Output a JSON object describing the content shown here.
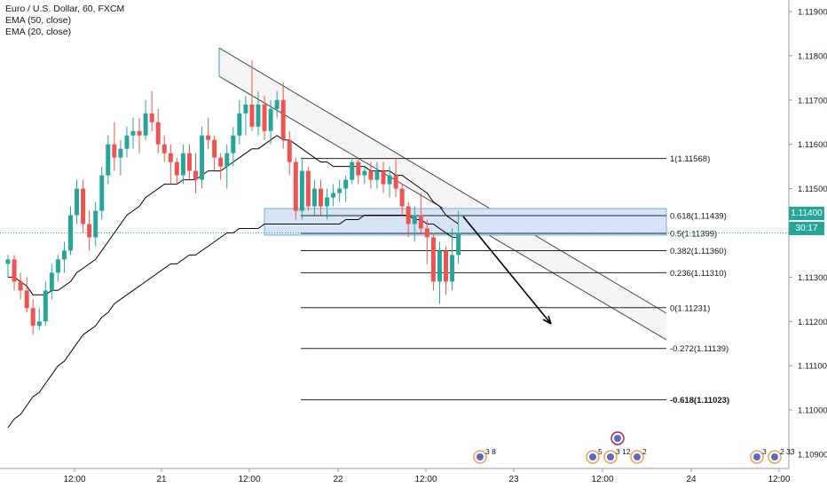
{
  "legend": {
    "title": "Euro / U.S. Dollar, 60, FXCM",
    "ema50": "EMA (50, close)",
    "ema20": "EMA (20, close)"
  },
  "price_label": {
    "value": "1.11400",
    "countdown": "30:17"
  },
  "colors": {
    "up": "#26a69a",
    "down": "#ef5350",
    "ema": "#000000",
    "fib_zone": "#d6e4f7",
    "channel": "#eeeeee",
    "price_line": "#26a69a"
  },
  "events": [
    "3",
    "8",
    "5",
    "3",
    "12",
    "2",
    "3",
    "2",
    "33"
  ],
  "chart_data": {
    "type": "candlestick",
    "y_ticks": [
      "1.11900",
      "1.11800",
      "1.11700",
      "1.11600",
      "1.11500",
      "1.11300",
      "1.11200",
      "1.11100",
      "1.11000",
      "1.10900"
    ],
    "x_ticks": [
      "12:00",
      "21",
      "12:00",
      "22",
      "12:00",
      "23",
      "12:00",
      "24",
      "12:00"
    ],
    "ylim": [
      1.10828,
      1.1192
    ],
    "candles": [
      {
        "o": 1.1133,
        "h": 1.1135,
        "l": 1.113,
        "c": 1.1134
      },
      {
        "o": 1.1134,
        "h": 1.1135,
        "l": 1.1127,
        "c": 1.1129
      },
      {
        "o": 1.1129,
        "h": 1.1131,
        "l": 1.1125,
        "c": 1.1127
      },
      {
        "o": 1.1127,
        "h": 1.113,
        "l": 1.1122,
        "c": 1.1123
      },
      {
        "o": 1.1123,
        "h": 1.1125,
        "l": 1.1117,
        "c": 1.1119
      },
      {
        "o": 1.1119,
        "h": 1.1123,
        "l": 1.1118,
        "c": 1.112
      },
      {
        "o": 1.112,
        "h": 1.1129,
        "l": 1.1119,
        "c": 1.1127
      },
      {
        "o": 1.1127,
        "h": 1.1133,
        "l": 1.1125,
        "c": 1.1131
      },
      {
        "o": 1.1131,
        "h": 1.1135,
        "l": 1.1129,
        "c": 1.1134
      },
      {
        "o": 1.1134,
        "h": 1.1138,
        "l": 1.1131,
        "c": 1.1136
      },
      {
        "o": 1.1136,
        "h": 1.1146,
        "l": 1.1135,
        "c": 1.1144
      },
      {
        "o": 1.1144,
        "h": 1.1152,
        "l": 1.1142,
        "c": 1.115
      },
      {
        "o": 1.115,
        "h": 1.1152,
        "l": 1.114,
        "c": 1.1142
      },
      {
        "o": 1.1142,
        "h": 1.1145,
        "l": 1.1136,
        "c": 1.1139
      },
      {
        "o": 1.1139,
        "h": 1.1147,
        "l": 1.1137,
        "c": 1.1145
      },
      {
        "o": 1.1145,
        "h": 1.1155,
        "l": 1.1143,
        "c": 1.1153
      },
      {
        "o": 1.1153,
        "h": 1.1162,
        "l": 1.1151,
        "c": 1.116
      },
      {
        "o": 1.116,
        "h": 1.1165,
        "l": 1.1154,
        "c": 1.1157
      },
      {
        "o": 1.1157,
        "h": 1.1161,
        "l": 1.1153,
        "c": 1.1159
      },
      {
        "o": 1.1159,
        "h": 1.1164,
        "l": 1.1157,
        "c": 1.1162
      },
      {
        "o": 1.1162,
        "h": 1.1166,
        "l": 1.1159,
        "c": 1.1163
      },
      {
        "o": 1.1163,
        "h": 1.1166,
        "l": 1.1158,
        "c": 1.1162
      },
      {
        "o": 1.1162,
        "h": 1.117,
        "l": 1.1161,
        "c": 1.1167
      },
      {
        "o": 1.1167,
        "h": 1.1172,
        "l": 1.1163,
        "c": 1.1165
      },
      {
        "o": 1.1165,
        "h": 1.1168,
        "l": 1.1158,
        "c": 1.116
      },
      {
        "o": 1.116,
        "h": 1.1162,
        "l": 1.1156,
        "c": 1.1158
      },
      {
        "o": 1.1158,
        "h": 1.116,
        "l": 1.1151,
        "c": 1.1156
      },
      {
        "o": 1.1156,
        "h": 1.1157,
        "l": 1.1151,
        "c": 1.1153
      },
      {
        "o": 1.1153,
        "h": 1.116,
        "l": 1.1151,
        "c": 1.1158
      },
      {
        "o": 1.1158,
        "h": 1.116,
        "l": 1.1152,
        "c": 1.1154
      },
      {
        "o": 1.1154,
        "h": 1.1158,
        "l": 1.1149,
        "c": 1.1152
      },
      {
        "o": 1.1152,
        "h": 1.1164,
        "l": 1.115,
        "c": 1.1162
      },
      {
        "o": 1.1162,
        "h": 1.1166,
        "l": 1.1159,
        "c": 1.1161
      },
      {
        "o": 1.1161,
        "h": 1.1162,
        "l": 1.1154,
        "c": 1.1157
      },
      {
        "o": 1.1157,
        "h": 1.1158,
        "l": 1.1152,
        "c": 1.1155
      },
      {
        "o": 1.1155,
        "h": 1.116,
        "l": 1.115,
        "c": 1.1158
      },
      {
        "o": 1.1158,
        "h": 1.1164,
        "l": 1.1155,
        "c": 1.1162
      },
      {
        "o": 1.1162,
        "h": 1.117,
        "l": 1.116,
        "c": 1.1167
      },
      {
        "o": 1.1167,
        "h": 1.1171,
        "l": 1.1162,
        "c": 1.1169
      },
      {
        "o": 1.1169,
        "h": 1.1179,
        "l": 1.1163,
        "c": 1.1164
      },
      {
        "o": 1.1164,
        "h": 1.1172,
        "l": 1.1162,
        "c": 1.1169
      },
      {
        "o": 1.1169,
        "h": 1.1171,
        "l": 1.1161,
        "c": 1.1163
      },
      {
        "o": 1.1163,
        "h": 1.117,
        "l": 1.116,
        "c": 1.1168
      },
      {
        "o": 1.1168,
        "h": 1.1172,
        "l": 1.1166,
        "c": 1.117
      },
      {
        "o": 1.117,
        "h": 1.1174,
        "l": 1.1159,
        "c": 1.1161
      },
      {
        "o": 1.1161,
        "h": 1.1163,
        "l": 1.1153,
        "c": 1.1156
      },
      {
        "o": 1.1156,
        "h": 1.1157,
        "l": 1.1143,
        "c": 1.1145
      },
      {
        "o": 1.1145,
        "h": 1.1157,
        "l": 1.1143,
        "c": 1.1154
      },
      {
        "o": 1.1154,
        "h": 1.1155,
        "l": 1.1145,
        "c": 1.1146
      },
      {
        "o": 1.1146,
        "h": 1.1152,
        "l": 1.1144,
        "c": 1.115
      },
      {
        "o": 1.115,
        "h": 1.1152,
        "l": 1.1144,
        "c": 1.1146
      },
      {
        "o": 1.1146,
        "h": 1.115,
        "l": 1.1143,
        "c": 1.1148
      },
      {
        "o": 1.1148,
        "h": 1.1151,
        "l": 1.1146,
        "c": 1.1149
      },
      {
        "o": 1.1149,
        "h": 1.1152,
        "l": 1.1147,
        "c": 1.115
      },
      {
        "o": 1.115,
        "h": 1.1153,
        "l": 1.1147,
        "c": 1.1152
      },
      {
        "o": 1.1152,
        "h": 1.1157,
        "l": 1.1151,
        "c": 1.1156
      },
      {
        "o": 1.1156,
        "h": 1.1157,
        "l": 1.1151,
        "c": 1.1153
      },
      {
        "o": 1.1153,
        "h": 1.1155,
        "l": 1.1151,
        "c": 1.1154
      },
      {
        "o": 1.1154,
        "h": 1.1156,
        "l": 1.115,
        "c": 1.1152
      },
      {
        "o": 1.1152,
        "h": 1.1156,
        "l": 1.115,
        "c": 1.1154
      },
      {
        "o": 1.1154,
        "h": 1.1156,
        "l": 1.1149,
        "c": 1.1151
      },
      {
        "o": 1.1151,
        "h": 1.1155,
        "l": 1.1148,
        "c": 1.1153
      },
      {
        "o": 1.1153,
        "h": 1.1157,
        "l": 1.1148,
        "c": 1.115
      },
      {
        "o": 1.115,
        "h": 1.1151,
        "l": 1.1144,
        "c": 1.1146
      },
      {
        "o": 1.1146,
        "h": 1.1147,
        "l": 1.1139,
        "c": 1.1142
      },
      {
        "o": 1.1142,
        "h": 1.1146,
        "l": 1.1138,
        "c": 1.1144
      },
      {
        "o": 1.1144,
        "h": 1.1149,
        "l": 1.114,
        "c": 1.1141
      },
      {
        "o": 1.1141,
        "h": 1.1143,
        "l": 1.1133,
        "c": 1.1139
      },
      {
        "o": 1.1139,
        "h": 1.114,
        "l": 1.1127,
        "c": 1.1129
      },
      {
        "o": 1.1129,
        "h": 1.1138,
        "l": 1.1124,
        "c": 1.1136
      },
      {
        "o": 1.1136,
        "h": 1.1137,
        "l": 1.1126,
        "c": 1.1129
      },
      {
        "o": 1.1129,
        "h": 1.1141,
        "l": 1.1127,
        "c": 1.1135
      },
      {
        "o": 1.1135,
        "h": 1.1145,
        "l": 1.1133,
        "c": 1.114
      }
    ],
    "ema20": [
      1.113,
      1.113,
      1.1129,
      1.1128,
      1.1126,
      1.1126,
      1.1126,
      1.1127,
      1.1127,
      1.1128,
      1.1129,
      1.1131,
      1.1132,
      1.1133,
      1.1134,
      1.1136,
      1.1138,
      1.114,
      1.1142,
      1.1144,
      1.1145,
      1.1146,
      1.1148,
      1.1149,
      1.115,
      1.1151,
      1.1151,
      1.1151,
      1.1152,
      1.1152,
      1.1152,
      1.1153,
      1.1154,
      1.1154,
      1.1154,
      1.1155,
      1.1156,
      1.1157,
      1.1158,
      1.1159,
      1.1159,
      1.116,
      1.1161,
      1.1162,
      1.1161,
      1.1161,
      1.116,
      1.1159,
      1.1158,
      1.1157,
      1.1156,
      1.1156,
      1.1155,
      1.1155,
      1.1155,
      1.1155,
      1.1155,
      1.1155,
      1.1154,
      1.1154,
      1.1154,
      1.1154,
      1.1153,
      1.1153,
      1.1152,
      1.1151,
      1.115,
      1.1149,
      1.1147,
      1.1146,
      1.1144,
      1.1143,
      1.1142
    ],
    "ema50": [
      1.1096,
      1.1098,
      1.1099,
      1.1101,
      1.1103,
      1.1104,
      1.1106,
      1.1108,
      1.111,
      1.1111,
      1.1113,
      1.1115,
      1.1117,
      1.1118,
      1.1119,
      1.1121,
      1.1122,
      1.1124,
      1.1125,
      1.1126,
      1.1127,
      1.1128,
      1.1129,
      1.113,
      1.1131,
      1.1132,
      1.1133,
      1.1133,
      1.1134,
      1.1135,
      1.1135,
      1.1136,
      1.1137,
      1.1138,
      1.1139,
      1.114,
      1.114,
      1.1141,
      1.1141,
      1.1141,
      1.1141,
      1.1142,
      1.1142,
      1.1142,
      1.1142,
      1.1142,
      1.1142,
      1.1142,
      1.1142,
      1.1142,
      1.1142,
      1.1142,
      1.1142,
      1.1142,
      1.1143,
      1.1143,
      1.1143,
      1.1144,
      1.1144,
      1.1144,
      1.1144,
      1.1144,
      1.1144,
      1.1144,
      1.1144,
      1.1143,
      1.1143,
      1.1142,
      1.1142,
      1.1141,
      1.114,
      1.1139,
      1.1139
    ],
    "fib_levels": [
      {
        "label": "1(1.11568)",
        "value": 1.11568
      },
      {
        "label": "0.618(1.11439)",
        "value": 1.11439
      },
      {
        "label": "0.5(1.11399)",
        "value": 1.11399
      },
      {
        "label": "0.382(1.11360)",
        "value": 1.1136
      },
      {
        "label": "0.236(1.11310)",
        "value": 1.1131
      },
      {
        "label": "0(1.11231)",
        "value": 1.11231
      },
      {
        "label": "-0.272(1.11139)",
        "value": 1.11139
      },
      {
        "label": "-0.618(1.11023)",
        "value": 1.11023
      }
    ],
    "current_price": 1.114
  }
}
